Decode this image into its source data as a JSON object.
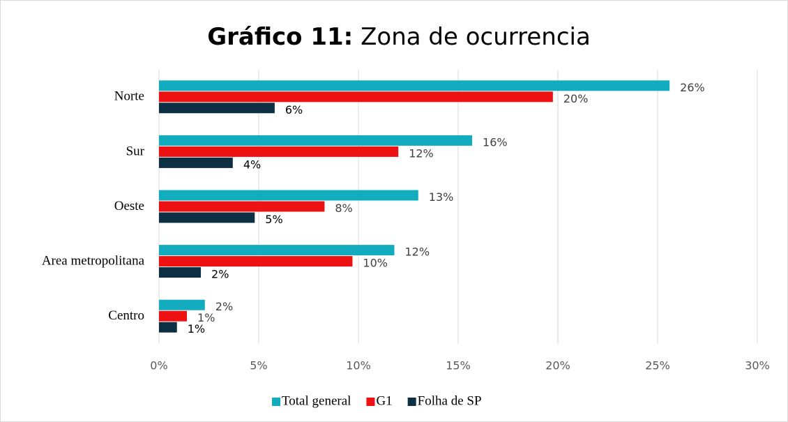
{
  "chart_data": {
    "type": "hbar",
    "title": "Gráfico 11: Zona de ocurrencia",
    "categories": [
      "Norte",
      "Sur",
      "Oeste",
      "Area metropolitana",
      "Centro"
    ],
    "series": [
      {
        "name": "Total general",
        "color": "#12acbe",
        "values": [
          25.6,
          15.7,
          13.0,
          11.8,
          2.3
        ],
        "value_labels": [
          "26%",
          "16%",
          "13%",
          "12%",
          "2%"
        ]
      },
      {
        "name": "G1",
        "color": "#ee1111",
        "values": [
          19.75,
          12.0,
          8.3,
          9.7,
          1.4
        ],
        "value_labels": [
          "20%",
          "12%",
          "8%",
          "10%",
          "1%"
        ]
      },
      {
        "name": "Folha de SP",
        "color": "#0d2f43",
        "values": [
          5.8,
          3.7,
          4.8,
          2.1,
          0.9
        ],
        "value_labels": [
          "6%",
          "4%",
          "5%",
          "2%",
          "1%"
        ]
      }
    ],
    "xlim": [
      0,
      30
    ],
    "xticks": [
      {
        "value": 0,
        "label": "0%"
      },
      {
        "value": 5,
        "label": "5%"
      },
      {
        "value": 10,
        "label": "10%"
      },
      {
        "value": 15,
        "label": "15%"
      },
      {
        "value": 20,
        "label": "20%"
      },
      {
        "value": 25,
        "label": "25%"
      },
      {
        "value": 30,
        "label": "30%"
      }
    ],
    "grid": true,
    "legend": "bottom"
  }
}
